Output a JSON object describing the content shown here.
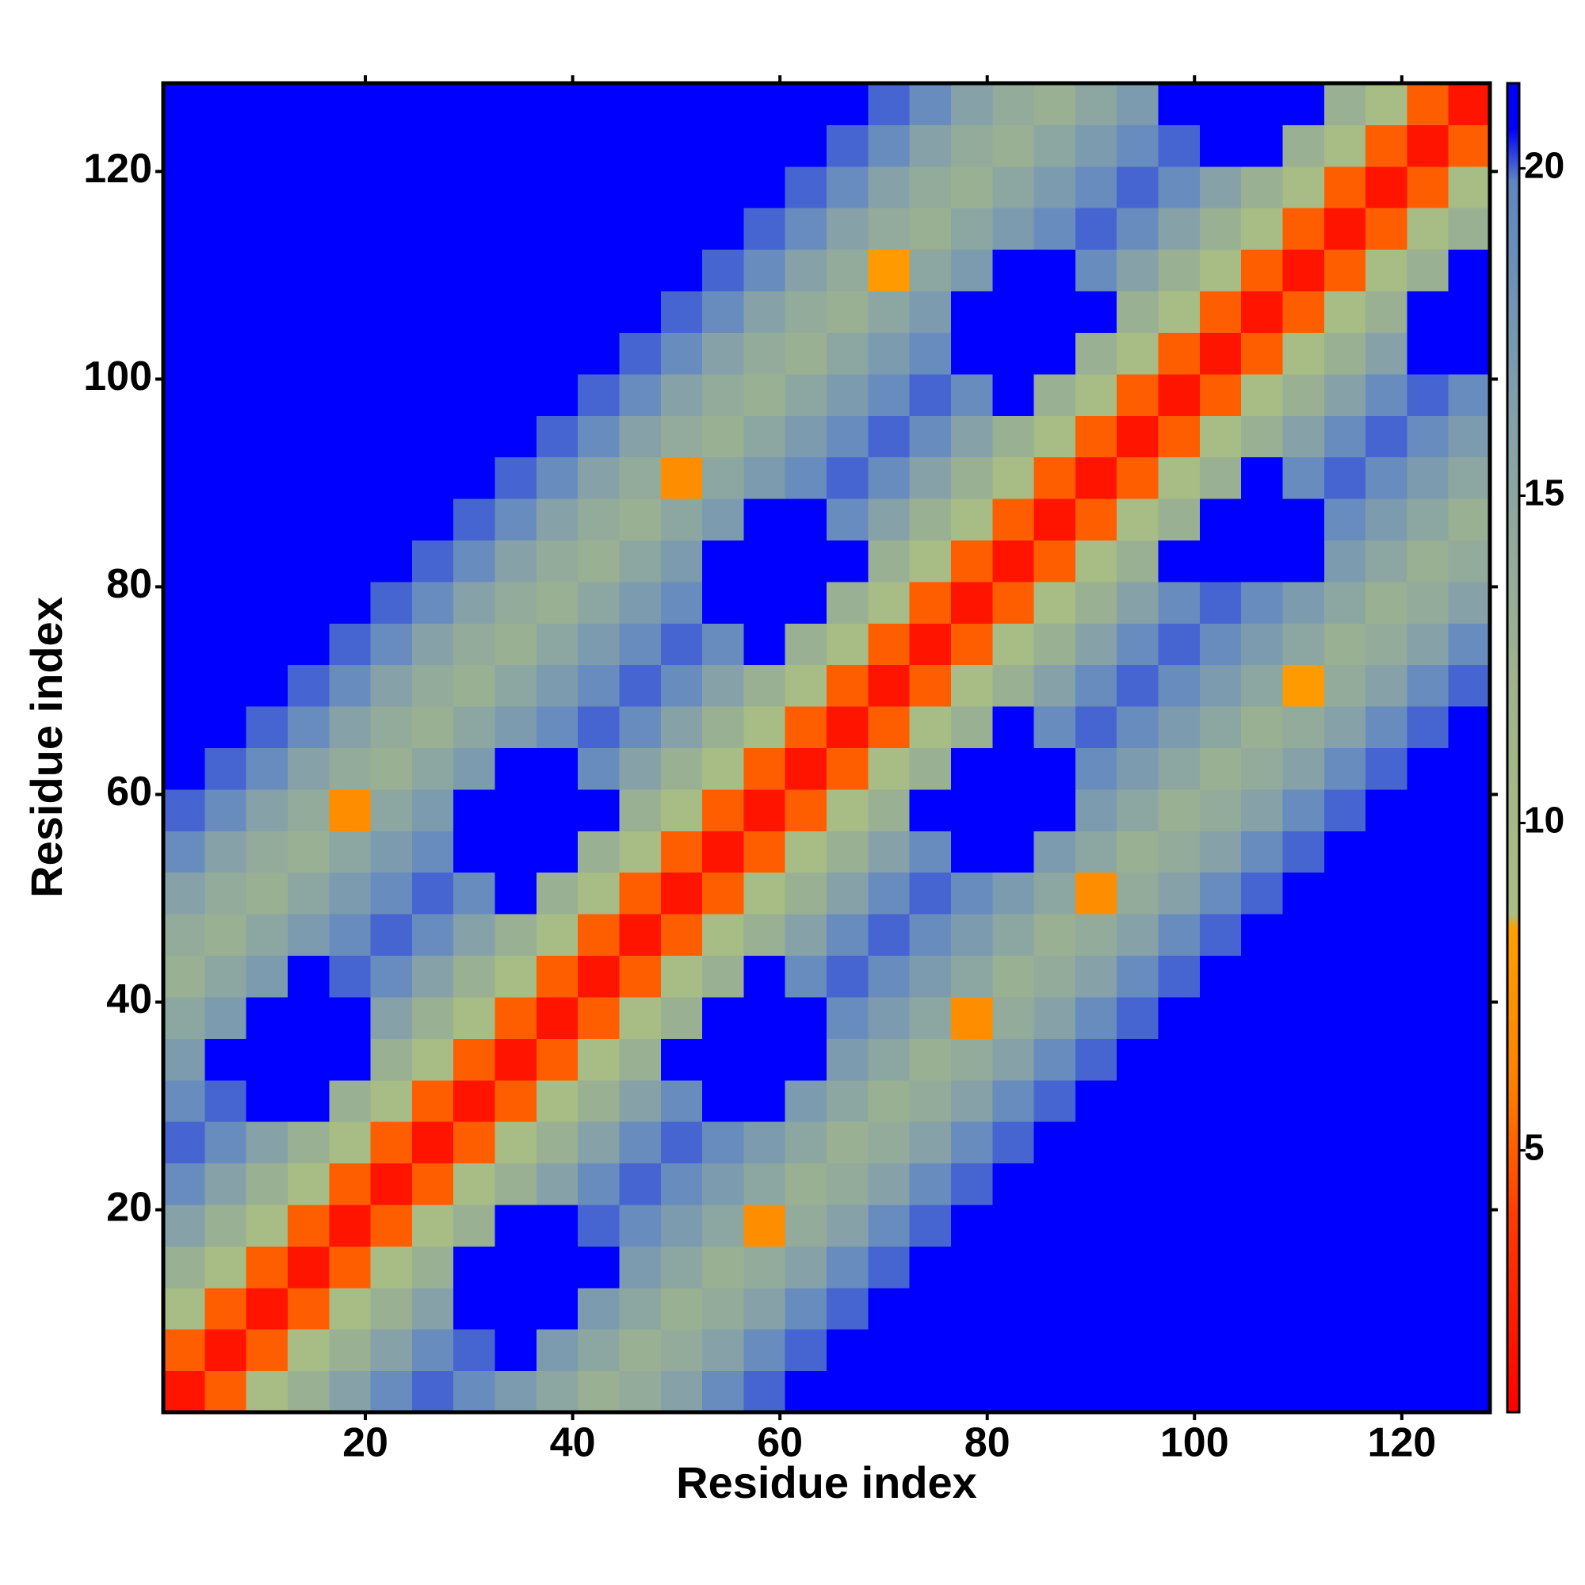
{
  "chart_data": {
    "type": "heatmap",
    "x_label": "Residue index",
    "y_label": "Residue index",
    "xlim": [
      0.5,
      128.5
    ],
    "ylim": [
      0.5,
      128.5
    ],
    "xticks": [
      20,
      40,
      60,
      80,
      100,
      120
    ],
    "yticks": [
      20,
      40,
      60,
      80,
      100,
      120
    ],
    "bins": [
      0.5,
      4.5,
      8.5,
      12.5,
      16.5,
      20.5,
      24.5,
      28.5,
      32.5,
      36.5,
      40.5,
      44.5,
      48.5,
      52.5,
      56.5,
      60.5,
      64.5,
      68.5,
      72.5,
      76.5,
      80.5,
      84.5,
      88.5,
      92.5,
      96.5,
      100.5,
      104.5,
      108.5,
      112.5,
      116.5,
      120.5,
      124.5,
      128.5
    ],
    "zlim": [
      1,
      21.3
    ],
    "zticks": [
      5,
      10,
      15,
      20
    ],
    "colorscale": [
      [
        1,
        "#ff0000"
      ],
      [
        4,
        "#ff3c00"
      ],
      [
        6,
        "#ff8000"
      ],
      [
        8.4,
        "#ffa000"
      ],
      [
        8.6,
        "#a9bd84"
      ],
      [
        12,
        "#9fb48c"
      ],
      [
        16,
        "#86a2a8"
      ],
      [
        19.8,
        "#5f86c2"
      ],
      [
        20.6,
        "#0000ff"
      ],
      [
        21.3,
        "#0000ff"
      ]
    ],
    "z": [
      [
        2,
        5,
        9,
        13,
        16,
        19,
        20,
        19,
        17,
        15,
        13,
        14,
        16,
        19,
        20,
        21,
        21,
        21,
        21,
        21,
        21,
        21,
        21,
        21,
        21,
        21,
        21,
        21,
        21,
        21,
        21,
        21
      ],
      [
        5,
        2,
        5,
        9,
        13,
        16,
        19,
        20,
        21,
        17,
        15,
        13,
        14,
        16,
        19,
        20,
        21,
        21,
        21,
        21,
        21,
        21,
        21,
        21,
        21,
        21,
        21,
        21,
        21,
        21,
        21,
        21
      ],
      [
        9,
        5,
        2,
        5,
        9,
        13,
        16,
        21,
        21,
        21,
        17,
        15,
        13,
        14,
        16,
        19,
        20,
        21,
        21,
        21,
        21,
        21,
        21,
        21,
        21,
        21,
        21,
        21,
        21,
        21,
        21,
        21
      ],
      [
        13,
        9,
        5,
        2,
        5,
        9,
        13,
        21,
        21,
        21,
        21,
        17,
        15,
        13,
        14,
        16,
        19,
        20,
        21,
        21,
        21,
        21,
        21,
        21,
        21,
        21,
        21,
        21,
        21,
        21,
        21,
        21
      ],
      [
        16,
        13,
        9,
        5,
        2,
        5,
        9,
        13,
        21,
        21,
        20,
        19,
        17,
        15,
        7,
        14,
        16,
        19,
        20,
        21,
        21,
        21,
        21,
        21,
        21,
        21,
        21,
        21,
        21,
        21,
        21,
        21
      ],
      [
        19,
        16,
        13,
        9,
        5,
        2,
        5,
        9,
        13,
        16,
        19,
        20,
        19,
        17,
        15,
        13,
        14,
        16,
        19,
        20,
        21,
        21,
        21,
        21,
        21,
        21,
        21,
        21,
        21,
        21,
        21,
        21
      ],
      [
        20,
        19,
        16,
        13,
        9,
        5,
        2,
        5,
        9,
        13,
        16,
        19,
        20,
        19,
        17,
        15,
        13,
        14,
        16,
        19,
        20,
        21,
        21,
        21,
        21,
        21,
        21,
        21,
        21,
        21,
        21,
        21
      ],
      [
        19,
        20,
        21,
        21,
        13,
        9,
        5,
        2,
        5,
        9,
        13,
        16,
        19,
        21,
        21,
        17,
        15,
        13,
        14,
        16,
        19,
        20,
        21,
        21,
        21,
        21,
        21,
        21,
        21,
        21,
        21,
        21
      ],
      [
        17,
        21,
        21,
        21,
        21,
        13,
        9,
        5,
        2,
        5,
        9,
        13,
        21,
        21,
        21,
        21,
        17,
        15,
        13,
        14,
        16,
        19,
        20,
        21,
        21,
        21,
        21,
        21,
        21,
        21,
        21,
        21
      ],
      [
        15,
        17,
        21,
        21,
        21,
        16,
        13,
        9,
        5,
        2,
        5,
        9,
        13,
        21,
        21,
        21,
        19,
        17,
        15,
        7,
        14,
        16,
        19,
        20,
        21,
        21,
        21,
        21,
        21,
        21,
        21,
        21
      ],
      [
        13,
        15,
        17,
        21,
        20,
        19,
        16,
        13,
        9,
        5,
        2,
        5,
        9,
        13,
        21,
        19,
        20,
        19,
        17,
        15,
        13,
        14,
        16,
        19,
        20,
        21,
        21,
        21,
        21,
        21,
        21,
        21
      ],
      [
        14,
        13,
        15,
        17,
        19,
        20,
        19,
        16,
        13,
        9,
        5,
        2,
        5,
        9,
        13,
        16,
        19,
        20,
        19,
        17,
        15,
        13,
        14,
        16,
        19,
        20,
        21,
        21,
        21,
        21,
        21,
        21
      ],
      [
        16,
        14,
        13,
        15,
        17,
        19,
        20,
        19,
        21,
        13,
        9,
        5,
        2,
        5,
        9,
        13,
        16,
        19,
        20,
        19,
        17,
        15,
        7,
        14,
        16,
        19,
        20,
        21,
        21,
        21,
        21,
        21
      ],
      [
        19,
        16,
        14,
        13,
        15,
        17,
        19,
        21,
        21,
        21,
        13,
        9,
        5,
        2,
        5,
        9,
        13,
        16,
        19,
        21,
        21,
        17,
        15,
        13,
        14,
        16,
        19,
        20,
        21,
        21,
        21,
        21
      ],
      [
        20,
        19,
        16,
        14,
        7,
        15,
        17,
        21,
        21,
        21,
        21,
        13,
        9,
        5,
        2,
        5,
        9,
        13,
        21,
        21,
        21,
        21,
        17,
        15,
        13,
        14,
        16,
        19,
        20,
        21,
        21,
        21
      ],
      [
        21,
        20,
        19,
        16,
        14,
        13,
        15,
        17,
        21,
        21,
        19,
        16,
        13,
        9,
        5,
        2,
        5,
        9,
        13,
        21,
        21,
        21,
        19,
        17,
        15,
        13,
        14,
        16,
        19,
        20,
        21,
        21
      ],
      [
        21,
        21,
        20,
        19,
        16,
        14,
        13,
        15,
        17,
        19,
        20,
        19,
        16,
        13,
        9,
        5,
        2,
        5,
        9,
        13,
        21,
        19,
        20,
        19,
        17,
        15,
        13,
        14,
        16,
        19,
        20,
        21
      ],
      [
        21,
        21,
        21,
        20,
        19,
        16,
        14,
        13,
        15,
        17,
        19,
        20,
        19,
        16,
        13,
        9,
        5,
        2,
        5,
        9,
        13,
        16,
        19,
        20,
        19,
        17,
        15,
        8,
        14,
        16,
        19,
        20
      ],
      [
        21,
        21,
        21,
        21,
        20,
        19,
        16,
        14,
        13,
        15,
        17,
        19,
        20,
        19,
        21,
        13,
        9,
        5,
        2,
        5,
        9,
        13,
        16,
        19,
        20,
        19,
        17,
        15,
        13,
        14,
        16,
        19
      ],
      [
        21,
        21,
        21,
        21,
        21,
        20,
        19,
        16,
        14,
        13,
        15,
        17,
        19,
        21,
        21,
        21,
        13,
        9,
        5,
        2,
        5,
        9,
        13,
        16,
        19,
        20,
        19,
        17,
        15,
        13,
        14,
        16
      ],
      [
        21,
        21,
        21,
        21,
        21,
        21,
        20,
        19,
        16,
        14,
        13,
        15,
        17,
        21,
        21,
        21,
        21,
        13,
        9,
        5,
        2,
        5,
        9,
        13,
        21,
        21,
        21,
        21,
        17,
        15,
        13,
        14
      ],
      [
        21,
        21,
        21,
        21,
        21,
        21,
        21,
        20,
        19,
        16,
        14,
        13,
        15,
        17,
        21,
        21,
        19,
        16,
        13,
        9,
        5,
        2,
        5,
        9,
        13,
        21,
        21,
        21,
        19,
        17,
        15,
        13
      ],
      [
        21,
        21,
        21,
        21,
        21,
        21,
        21,
        21,
        20,
        19,
        16,
        14,
        7,
        15,
        17,
        19,
        20,
        19,
        16,
        13,
        9,
        5,
        2,
        5,
        9,
        13,
        21,
        19,
        20,
        19,
        17,
        15
      ],
      [
        21,
        21,
        21,
        21,
        21,
        21,
        21,
        21,
        21,
        20,
        19,
        16,
        14,
        13,
        15,
        17,
        19,
        20,
        19,
        16,
        13,
        9,
        5,
        2,
        5,
        9,
        13,
        16,
        19,
        20,
        19,
        17
      ],
      [
        21,
        21,
        21,
        21,
        21,
        21,
        21,
        21,
        21,
        21,
        20,
        19,
        16,
        14,
        13,
        15,
        17,
        19,
        20,
        19,
        21,
        13,
        9,
        5,
        2,
        5,
        9,
        13,
        16,
        19,
        20,
        19
      ],
      [
        21,
        21,
        21,
        21,
        21,
        21,
        21,
        21,
        21,
        21,
        21,
        20,
        19,
        16,
        14,
        13,
        15,
        17,
        19,
        21,
        21,
        21,
        13,
        9,
        5,
        2,
        5,
        9,
        13,
        16,
        21,
        21
      ],
      [
        21,
        21,
        21,
        21,
        21,
        21,
        21,
        21,
        21,
        21,
        21,
        21,
        20,
        19,
        16,
        14,
        13,
        15,
        17,
        21,
        21,
        21,
        21,
        13,
        9,
        5,
        2,
        5,
        9,
        13,
        21,
        21
      ],
      [
        21,
        21,
        21,
        21,
        21,
        21,
        21,
        21,
        21,
        21,
        21,
        21,
        21,
        20,
        19,
        16,
        14,
        8,
        15,
        17,
        21,
        21,
        19,
        16,
        13,
        9,
        5,
        2,
        5,
        9,
        13,
        21
      ],
      [
        21,
        21,
        21,
        21,
        21,
        21,
        21,
        21,
        21,
        21,
        21,
        21,
        21,
        21,
        20,
        19,
        16,
        14,
        13,
        15,
        17,
        19,
        20,
        19,
        16,
        13,
        9,
        5,
        2,
        5,
        9,
        13
      ],
      [
        21,
        21,
        21,
        21,
        21,
        21,
        21,
        21,
        21,
        21,
        21,
        21,
        21,
        21,
        21,
        20,
        19,
        16,
        14,
        13,
        15,
        17,
        19,
        20,
        19,
        16,
        13,
        9,
        5,
        2,
        5,
        9
      ],
      [
        21,
        21,
        21,
        21,
        21,
        21,
        21,
        21,
        21,
        21,
        21,
        21,
        21,
        21,
        21,
        21,
        20,
        19,
        16,
        14,
        13,
        15,
        17,
        19,
        20,
        21,
        21,
        13,
        9,
        5,
        2,
        5
      ],
      [
        21,
        21,
        21,
        21,
        21,
        21,
        21,
        21,
        21,
        21,
        21,
        21,
        21,
        21,
        21,
        21,
        21,
        20,
        19,
        16,
        14,
        13,
        15,
        17,
        21,
        21,
        21,
        21,
        13,
        9,
        5,
        2
      ]
    ]
  }
}
